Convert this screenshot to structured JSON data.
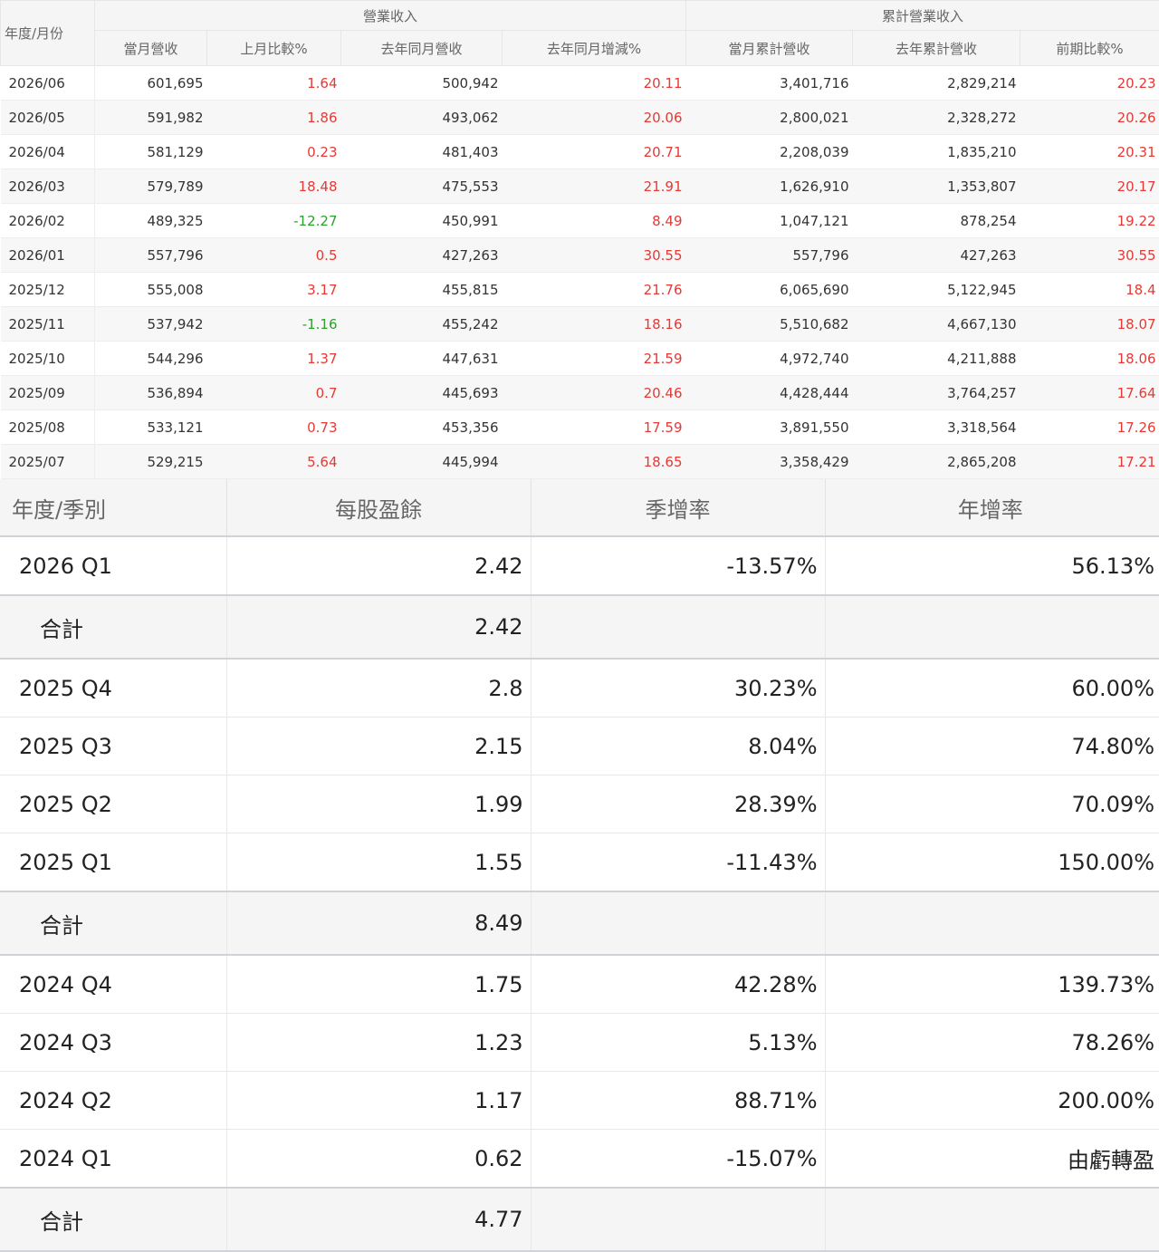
{
  "revenue": {
    "header": {
      "year_month": "年度/月份",
      "group_operating": "營業收入",
      "group_cumulative": "累計營業收入",
      "cols": [
        "當月營收",
        "上月比較%",
        "去年同月營收",
        "去年同月增減%",
        "當月累計營收",
        "去年累計營收",
        "前期比較%"
      ]
    },
    "rows": [
      {
        "month": "2026/06",
        "rev": "601,695",
        "mom": "1.64",
        "ly_rev": "500,942",
        "yoy": "20.11",
        "cum": "3,401,716",
        "ly_cum": "2,829,214",
        "cum_yoy": "20.23"
      },
      {
        "month": "2026/05",
        "rev": "591,982",
        "mom": "1.86",
        "ly_rev": "493,062",
        "yoy": "20.06",
        "cum": "2,800,021",
        "ly_cum": "2,328,272",
        "cum_yoy": "20.26"
      },
      {
        "month": "2026/04",
        "rev": "581,129",
        "mom": "0.23",
        "ly_rev": "481,403",
        "yoy": "20.71",
        "cum": "2,208,039",
        "ly_cum": "1,835,210",
        "cum_yoy": "20.31"
      },
      {
        "month": "2026/03",
        "rev": "579,789",
        "mom": "18.48",
        "ly_rev": "475,553",
        "yoy": "21.91",
        "cum": "1,626,910",
        "ly_cum": "1,353,807",
        "cum_yoy": "20.17"
      },
      {
        "month": "2026/02",
        "rev": "489,325",
        "mom": "-12.27",
        "ly_rev": "450,991",
        "yoy": "8.49",
        "cum": "1,047,121",
        "ly_cum": "878,254",
        "cum_yoy": "19.22"
      },
      {
        "month": "2026/01",
        "rev": "557,796",
        "mom": "0.5",
        "ly_rev": "427,263",
        "yoy": "30.55",
        "cum": "557,796",
        "ly_cum": "427,263",
        "cum_yoy": "30.55"
      },
      {
        "month": "2025/12",
        "rev": "555,008",
        "mom": "3.17",
        "ly_rev": "455,815",
        "yoy": "21.76",
        "cum": "6,065,690",
        "ly_cum": "5,122,945",
        "cum_yoy": "18.4"
      },
      {
        "month": "2025/11",
        "rev": "537,942",
        "mom": "-1.16",
        "ly_rev": "455,242",
        "yoy": "18.16",
        "cum": "5,510,682",
        "ly_cum": "4,667,130",
        "cum_yoy": "18.07"
      },
      {
        "month": "2025/10",
        "rev": "544,296",
        "mom": "1.37",
        "ly_rev": "447,631",
        "yoy": "21.59",
        "cum": "4,972,740",
        "ly_cum": "4,211,888",
        "cum_yoy": "18.06"
      },
      {
        "month": "2025/09",
        "rev": "536,894",
        "mom": "0.7",
        "ly_rev": "445,693",
        "yoy": "20.46",
        "cum": "4,428,444",
        "ly_cum": "3,764,257",
        "cum_yoy": "17.64"
      },
      {
        "month": "2025/08",
        "rev": "533,121",
        "mom": "0.73",
        "ly_rev": "453,356",
        "yoy": "17.59",
        "cum": "3,891,550",
        "ly_cum": "3,318,564",
        "cum_yoy": "17.26"
      },
      {
        "month": "2025/07",
        "rev": "529,215",
        "mom": "5.64",
        "ly_rev": "445,994",
        "yoy": "18.65",
        "cum": "3,358,429",
        "ly_cum": "2,865,208",
        "cum_yoy": "17.21"
      }
    ],
    "colors": {
      "positive": "#e53935",
      "negative": "#2e9e2e"
    }
  },
  "eps": {
    "header": {
      "quarter": "年度/季別",
      "eps": "每股盈餘",
      "qoq": "季增率",
      "yoy": "年增率"
    },
    "rows": [
      {
        "type": "row",
        "quarter": "2026 Q1",
        "eps": "2.42",
        "qoq": "-13.57%",
        "yoy": "56.13%"
      },
      {
        "type": "total",
        "label": "合計",
        "eps": "2.42"
      },
      {
        "type": "row",
        "quarter": "2025 Q4",
        "eps": "2.8",
        "qoq": "30.23%",
        "yoy": "60.00%"
      },
      {
        "type": "row",
        "quarter": "2025 Q3",
        "eps": "2.15",
        "qoq": "8.04%",
        "yoy": "74.80%"
      },
      {
        "type": "row",
        "quarter": "2025 Q2",
        "eps": "1.99",
        "qoq": "28.39%",
        "yoy": "70.09%"
      },
      {
        "type": "row",
        "quarter": "2025 Q1",
        "eps": "1.55",
        "qoq": "-11.43%",
        "yoy": "150.00%"
      },
      {
        "type": "total",
        "label": "合計",
        "eps": "8.49"
      },
      {
        "type": "row",
        "quarter": "2024 Q4",
        "eps": "1.75",
        "qoq": "42.28%",
        "yoy": "139.73%"
      },
      {
        "type": "row",
        "quarter": "2024 Q3",
        "eps": "1.23",
        "qoq": "5.13%",
        "yoy": "78.26%"
      },
      {
        "type": "row",
        "quarter": "2024 Q2",
        "eps": "1.17",
        "qoq": "88.71%",
        "yoy": "200.00%"
      },
      {
        "type": "row",
        "quarter": "2024 Q1",
        "eps": "0.62",
        "qoq": "-15.07%",
        "yoy": "由虧轉盈"
      },
      {
        "type": "total",
        "label": "合計",
        "eps": "4.77"
      }
    ]
  }
}
